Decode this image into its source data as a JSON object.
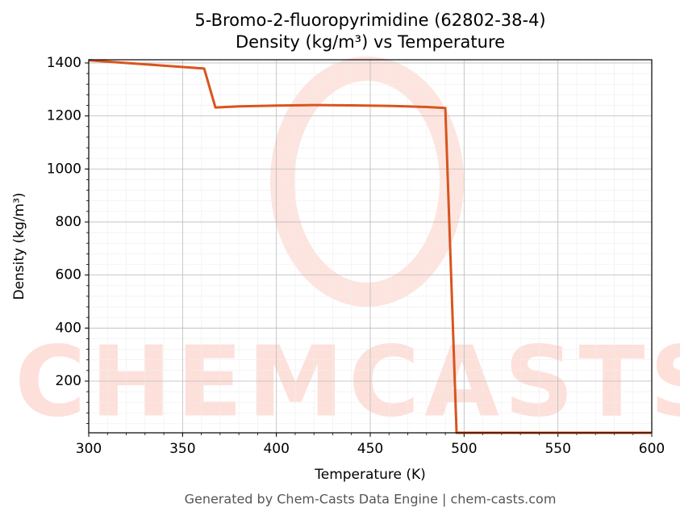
{
  "chart_data": {
    "type": "line",
    "title": "5-Bromo-2-fluoropyrimidine (62802-38-4)",
    "subtitle": "Density (kg/m³) vs Temperature",
    "x_label": "Temperature (K)",
    "y_label": "Density (kg/m³)",
    "footer": "Generated by Chem-Casts Data Engine | chem-casts.com",
    "watermark": "CHEMCASTS",
    "x": [
      300,
      361.5,
      367.5,
      380,
      400,
      420,
      440,
      460,
      480,
      490,
      496,
      600
    ],
    "series": [
      {
        "name": "Density",
        "color": "#d9541e",
        "values": [
          1410,
          1379,
          1232,
          1236,
          1239,
          1241,
          1240,
          1238,
          1234,
          1230,
          5,
          5
        ]
      }
    ],
    "xlim": [
      300,
      600
    ],
    "ylim": [
      5,
      1412
    ],
    "xticks": [
      300,
      350,
      400,
      450,
      500,
      550,
      600
    ],
    "yticks": [
      200,
      400,
      600,
      800,
      1000,
      1200,
      1400
    ],
    "grid": true,
    "minor_grid": true
  }
}
